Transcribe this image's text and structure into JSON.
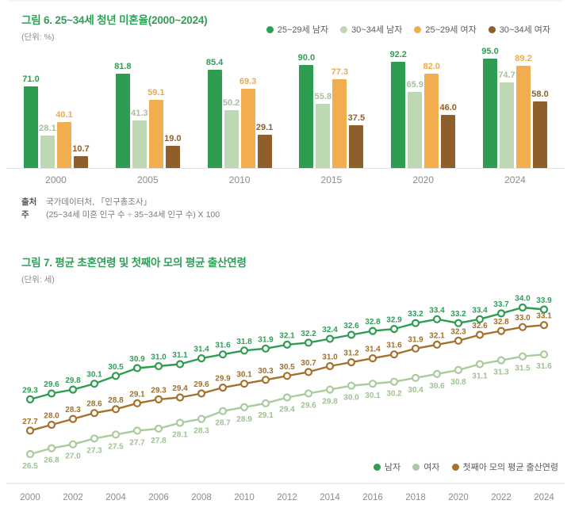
{
  "fig6": {
    "title": "그림 6. 25~34세 청년 미혼율(2000~2024)",
    "unit": "(단위: %)",
    "source_label": "출처",
    "source_text": "국가데이터처, 「인구총조사」",
    "note_label": "주",
    "note_text": "(25~34세 미혼 인구 수 ÷ 35~34세 인구 수) X 100"
  },
  "fig7": {
    "title": "그림 7. 평균 초혼연령 및 첫째아 모의 평균 출산연령",
    "unit": "(단위: 세)"
  },
  "chart_data": [
    {
      "type": "bar",
      "title": "그림 6. 25~34세 청년 미혼율(2000~2024)",
      "unit_label": "(단위: %)",
      "categories": [
        "2000",
        "2005",
        "2010",
        "2015",
        "2020",
        "2024"
      ],
      "series": [
        {
          "name": "25~29세 남자",
          "color": "#2e9d51",
          "label_color": "#2e9d51",
          "values": [
            71.0,
            81.8,
            85.4,
            90.0,
            92.2,
            95.0
          ]
        },
        {
          "name": "30~34세 남자",
          "color": "#bdd8b3",
          "label_color": "#a6c09e",
          "values": [
            28.1,
            41.3,
            50.2,
            55.8,
            65.9,
            74.7
          ]
        },
        {
          "name": "25~29세 여자",
          "color": "#f2ae4e",
          "label_color": "#f0a94a",
          "values": [
            40.1,
            59.1,
            69.3,
            77.3,
            82.0,
            89.2
          ]
        },
        {
          "name": "30~34세 여자",
          "color": "#8e5f2b",
          "label_color": "#8e5f2b",
          "values": [
            10.7,
            19.0,
            29.1,
            37.5,
            46.0,
            58.0
          ]
        }
      ],
      "ylim": [
        0,
        100
      ],
      "grid": false,
      "legend_position": "top-right"
    },
    {
      "type": "line",
      "title": "그림 7. 평균 초혼연령 및 첫째아 모의 평균 출산연령",
      "unit_label": "(단위: 세)",
      "x": [
        2000,
        2001,
        2002,
        2003,
        2004,
        2005,
        2006,
        2007,
        2008,
        2009,
        2010,
        2011,
        2012,
        2013,
        2014,
        2015,
        2016,
        2017,
        2018,
        2019,
        2020,
        2021,
        2022,
        2023,
        2024
      ],
      "x_tick_labels": [
        "2000",
        "2002",
        "2004",
        "2006",
        "2008",
        "2010",
        "2012",
        "2014",
        "2016",
        "2018",
        "2020",
        "2022",
        "2024"
      ],
      "series": [
        {
          "name": "남자",
          "color": "#2e9d51",
          "label_color": "#2f9e58",
          "label_position": "above",
          "values": [
            29.3,
            29.6,
            29.8,
            30.1,
            30.5,
            30.9,
            31.0,
            31.1,
            31.4,
            31.6,
            31.8,
            31.9,
            32.1,
            32.2,
            32.4,
            32.6,
            32.8,
            32.9,
            33.2,
            33.4,
            33.2,
            33.4,
            33.7,
            34.0,
            33.9
          ]
        },
        {
          "name": "여자",
          "color": "#a9cb9d",
          "label_color": "#9fc193",
          "label_position": "below",
          "values": [
            26.5,
            26.8,
            27.0,
            27.3,
            27.5,
            27.7,
            27.8,
            28.1,
            28.3,
            28.7,
            28.9,
            29.1,
            29.4,
            29.6,
            29.8,
            30.0,
            30.1,
            30.2,
            30.4,
            30.6,
            30.8,
            31.1,
            31.3,
            31.5,
            31.6
          ]
        },
        {
          "name": "첫째아 모의 평균 출산연령",
          "color": "#a5722e",
          "label_color": "#a0702d",
          "label_position": "above",
          "values": [
            27.7,
            28.0,
            28.3,
            28.6,
            28.8,
            29.1,
            29.3,
            29.4,
            29.6,
            29.9,
            30.1,
            30.3,
            30.5,
            30.7,
            31.0,
            31.2,
            31.4,
            31.6,
            31.9,
            32.1,
            32.3,
            32.6,
            32.8,
            33.0,
            33.1
          ]
        }
      ],
      "ylim": [
        26,
        34.5
      ],
      "grid": false,
      "legend_position": "bottom-right"
    }
  ]
}
